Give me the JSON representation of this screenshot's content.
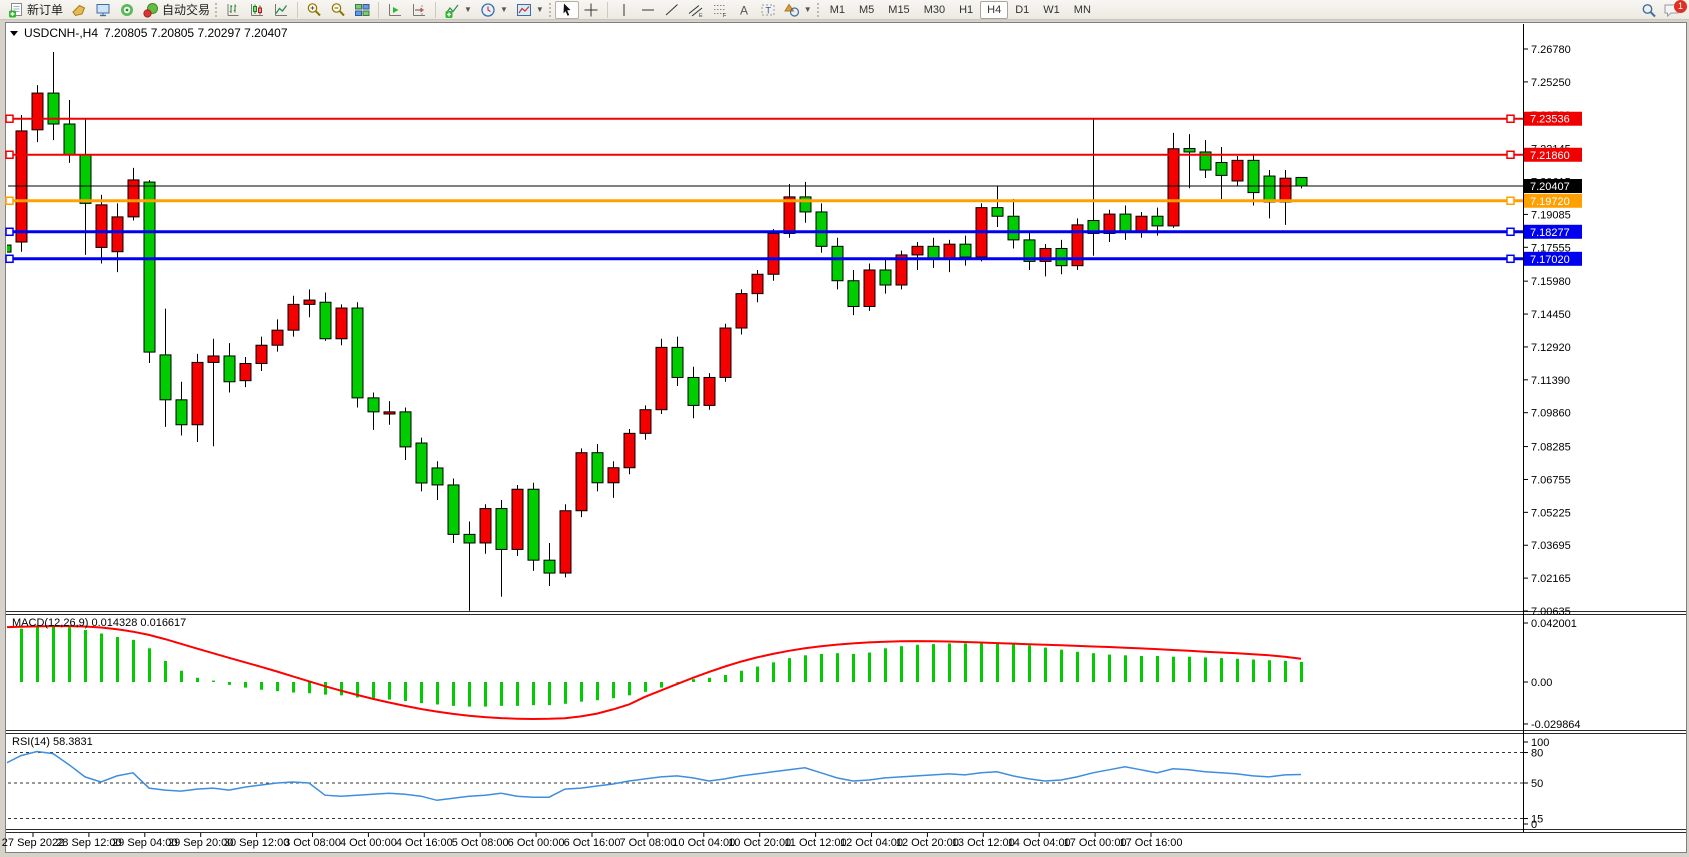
{
  "toolbar": {
    "new_order_label": "新订单",
    "autotrading_label": "自动交易",
    "timeframes": [
      "M1",
      "M5",
      "M15",
      "M30",
      "H1",
      "H4",
      "D1",
      "W1",
      "MN"
    ],
    "active_timeframe": "H4",
    "notification_count": "1",
    "icons": [
      "new-order-icon",
      "tag-icon",
      "market-watch-icon",
      "signals-icon",
      "autotrading-icon",
      "bar-chart-icon",
      "candlestick-chart-icon",
      "line-chart-icon",
      "zoom-in-icon",
      "zoom-out-icon",
      "tile-windows-icon",
      "auto-scroll-icon",
      "chart-shift-icon",
      "indicators-icon",
      "periods-icon",
      "templates-icon",
      "cursor-icon",
      "crosshair-icon",
      "vertical-line-icon",
      "horizontal-line-icon",
      "trendline-icon",
      "channel-icon",
      "fibonacci-icon",
      "text-icon",
      "label-icon",
      "shapes-icon",
      "search-icon",
      "chat-icon"
    ]
  },
  "chart": {
    "symbol_title": "USDCNH-,H4",
    "ohlc_text": "7.20805 7.20805 7.20297 7.20407",
    "macd_label": "MACD(12,26,9) 0.014328 0.016617",
    "rsi_label": "RSI(14) 58.3831"
  },
  "chart_data": {
    "type": "candlestick",
    "symbol": "USDCNH-",
    "timeframe": "H4",
    "colors": {
      "up": "#f50000",
      "down": "#00cd00",
      "wick": "#000000",
      "signal": "#ff0000",
      "macd_bar": "#00cc00",
      "rsi_line": "#3e8ede"
    },
    "ylim": [
      7.00635,
      7.2794
    ],
    "y_ticks": [
      "7.26780",
      "7.25250",
      "7.23720",
      "7.22145",
      "7.20615",
      "7.19085",
      "7.17555",
      "7.15980",
      "7.14450",
      "7.12920",
      "7.11390",
      "7.09860",
      "7.08285",
      "7.06755",
      "7.05225",
      "7.03695",
      "7.02165",
      "7.00635"
    ],
    "x_labels": [
      "27 Sep 2022",
      "28 Sep 12:00",
      "29 Sep 04:00",
      "29 Sep 20:00",
      "30 Sep 12:00",
      "3 Oct 08:00",
      "4 Oct 00:00",
      "4 Oct 16:00",
      "5 Oct 08:00",
      "6 Oct 00:00",
      "6 Oct 16:00",
      "7 Oct 08:00",
      "10 Oct 04:00",
      "10 Oct 20:00",
      "11 Oct 12:00",
      "12 Oct 04:00",
      "12 Oct 20:00",
      "13 Oct 12:00",
      "14 Oct 04:00",
      "17 Oct 00:00",
      "17 Oct 16:00"
    ],
    "hlines": [
      {
        "price": 7.23536,
        "label": "7.23536",
        "color": "#f00000",
        "width": 2
      },
      {
        "price": 7.2186,
        "label": "7.21860",
        "color": "#f00000",
        "width": 2
      },
      {
        "price": 7.1972,
        "label": "7.19720",
        "color": "#ffa000",
        "width": 3
      },
      {
        "price": 7.18277,
        "label": "7.18277",
        "color": "#0000f0",
        "width": 3
      },
      {
        "price": 7.1702,
        "label": "7.17020",
        "color": "#0000f0",
        "width": 3
      }
    ],
    "current_price": {
      "value": 7.20407,
      "label": "7.20407",
      "color": "#000000"
    },
    "candles": [
      [
        7.1766,
        7.179,
        7.172,
        7.1733
      ],
      [
        7.178,
        7.2371,
        7.1735,
        7.2297
      ],
      [
        7.2302,
        7.251,
        7.2245,
        7.2473
      ],
      [
        7.2473,
        7.2664,
        7.2254,
        7.2329
      ],
      [
        7.2329,
        7.2441,
        7.2148,
        7.2185
      ],
      [
        7.2185,
        7.235,
        7.172,
        7.196
      ],
      [
        7.1755,
        7.2,
        7.168,
        7.1953
      ],
      [
        7.1735,
        7.196,
        7.164,
        7.1897
      ],
      [
        7.1897,
        7.2125,
        7.188,
        7.2069
      ],
      [
        7.2059,
        7.2068,
        7.1217,
        7.1268
      ],
      [
        7.1255,
        7.147,
        7.092,
        7.1046
      ],
      [
        7.1046,
        7.113,
        7.088,
        7.093
      ],
      [
        7.093,
        7.126,
        7.085,
        7.122
      ],
      [
        7.122,
        7.133,
        7.083,
        7.125
      ],
      [
        7.125,
        7.131,
        7.108,
        7.113
      ],
      [
        7.1135,
        7.1245,
        7.1105,
        7.1215
      ],
      [
        7.1215,
        7.134,
        7.118,
        7.13
      ],
      [
        7.13,
        7.142,
        7.127,
        7.137
      ],
      [
        7.137,
        7.153,
        7.134,
        7.149
      ],
      [
        7.149,
        7.156,
        7.143,
        7.151
      ],
      [
        7.15,
        7.1545,
        7.132,
        7.133
      ],
      [
        7.133,
        7.149,
        7.13,
        7.1473
      ],
      [
        7.1473,
        7.15,
        7.101,
        7.1055
      ],
      [
        7.1055,
        7.108,
        7.0906,
        7.099
      ],
      [
        7.098,
        7.104,
        7.093,
        7.099
      ],
      [
        7.099,
        7.101,
        7.0766,
        7.0827
      ],
      [
        7.0845,
        7.087,
        7.062,
        7.0659
      ],
      [
        7.0729,
        7.076,
        7.058,
        7.065
      ],
      [
        7.065,
        7.068,
        7.038,
        7.042
      ],
      [
        7.042,
        7.048,
        7.0065,
        7.038
      ],
      [
        7.038,
        7.056,
        7.033,
        7.054
      ],
      [
        7.054,
        7.058,
        7.013,
        7.035
      ],
      [
        7.035,
        7.065,
        7.032,
        7.063
      ],
      [
        7.063,
        7.066,
        7.025,
        7.03
      ],
      [
        7.03,
        7.038,
        7.018,
        7.024
      ],
      [
        7.024,
        7.056,
        7.022,
        7.053
      ],
      [
        7.053,
        7.082,
        7.05,
        7.08
      ],
      [
        7.08,
        7.084,
        7.062,
        7.066
      ],
      [
        7.066,
        7.076,
        7.059,
        7.073
      ],
      [
        7.073,
        7.091,
        7.07,
        7.089
      ],
      [
        7.089,
        7.102,
        7.086,
        7.1
      ],
      [
        7.1,
        7.133,
        7.098,
        7.129
      ],
      [
        7.129,
        7.134,
        7.111,
        7.115
      ],
      [
        7.115,
        7.12,
        7.096,
        7.102
      ],
      [
        7.102,
        7.117,
        7.1,
        7.115
      ],
      [
        7.115,
        7.14,
        7.113,
        7.138
      ],
      [
        7.138,
        7.156,
        7.135,
        7.154
      ],
      [
        7.154,
        7.165,
        7.15,
        7.163
      ],
      [
        7.163,
        7.184,
        7.16,
        7.182
      ],
      [
        7.182,
        7.205,
        7.18,
        7.199
      ],
      [
        7.199,
        7.206,
        7.187,
        7.192
      ],
      [
        7.192,
        7.196,
        7.173,
        7.176
      ],
      [
        7.176,
        7.18,
        7.156,
        7.16
      ],
      [
        7.16,
        7.165,
        7.144,
        7.148
      ],
      [
        7.148,
        7.168,
        7.146,
        7.165
      ],
      [
        7.165,
        7.17,
        7.154,
        7.158
      ],
      [
        7.158,
        7.174,
        7.156,
        7.172
      ],
      [
        7.172,
        7.178,
        7.165,
        7.176
      ],
      [
        7.176,
        7.18,
        7.166,
        7.17
      ],
      [
        7.17,
        7.179,
        7.164,
        7.177
      ],
      [
        7.177,
        7.181,
        7.167,
        7.171
      ],
      [
        7.171,
        7.196,
        7.169,
        7.194
      ],
      [
        7.194,
        7.204,
        7.185,
        7.19
      ],
      [
        7.19,
        7.198,
        7.175,
        7.179
      ],
      [
        7.179,
        7.183,
        7.165,
        7.169
      ],
      [
        7.169,
        7.177,
        7.162,
        7.175
      ],
      [
        7.175,
        7.179,
        7.163,
        7.167
      ],
      [
        7.167,
        7.189,
        7.165,
        7.186
      ],
      [
        7.188,
        7.2353,
        7.1716,
        7.182
      ],
      [
        7.182,
        7.193,
        7.178,
        7.191
      ],
      [
        7.191,
        7.195,
        7.179,
        7.183
      ],
      [
        7.183,
        7.192,
        7.18,
        7.19
      ],
      [
        7.19,
        7.194,
        7.181,
        7.1855
      ],
      [
        7.1855,
        7.2288,
        7.1846,
        7.2214
      ],
      [
        7.2215,
        7.2282,
        7.203,
        7.2199
      ],
      [
        7.2199,
        7.2254,
        7.2078,
        7.2115
      ],
      [
        7.215,
        7.2222,
        7.198,
        7.209
      ],
      [
        7.2064,
        7.218,
        7.204,
        7.216
      ],
      [
        7.216,
        7.219,
        7.195,
        7.201
      ],
      [
        7.2087,
        7.2115,
        7.189,
        7.1966
      ],
      [
        7.1966,
        7.2115,
        7.186,
        7.2077
      ],
      [
        7.20805,
        7.20805,
        7.20297,
        7.20407
      ]
    ],
    "macd": {
      "title": "MACD(12,26,9)",
      "values_label": "0.014328 0.016617",
      "ticks": [
        {
          "v": 0.042001,
          "label": "0.042001"
        },
        {
          "v": 0,
          "label": "0.00"
        },
        {
          "v": -0.029864,
          "label": "-0.029864"
        }
      ],
      "ylim": [
        -0.029864,
        0.042001
      ],
      "histogram": [
        0.035,
        0.038,
        0.04,
        0.0405,
        0.039,
        0.037,
        0.0345,
        0.032,
        0.03,
        0.024,
        0.015,
        0.008,
        0.003,
        0.001,
        -0.002,
        -0.004,
        -0.0055,
        -0.0065,
        -0.0075,
        -0.008,
        -0.009,
        -0.0095,
        -0.011,
        -0.012,
        -0.0125,
        -0.0135,
        -0.015,
        -0.016,
        -0.017,
        -0.0175,
        -0.0175,
        -0.017,
        -0.017,
        -0.0165,
        -0.0165,
        -0.0155,
        -0.014,
        -0.013,
        -0.0115,
        -0.0095,
        -0.007,
        -0.004,
        -0.0005,
        0.002,
        0.003,
        0.005,
        0.008,
        0.011,
        0.014,
        0.017,
        0.019,
        0.02,
        0.0205,
        0.02,
        0.021,
        0.024,
        0.0255,
        0.0265,
        0.027,
        0.0275,
        0.0275,
        0.028,
        0.0275,
        0.027,
        0.026,
        0.0245,
        0.023,
        0.0215,
        0.0205,
        0.0195,
        0.019,
        0.0185,
        0.0185,
        0.018,
        0.018,
        0.0175,
        0.017,
        0.0165,
        0.016,
        0.0155,
        0.015,
        0.0143
      ],
      "signal": [
        0.039,
        0.0393,
        0.0396,
        0.0398,
        0.0398,
        0.0395,
        0.0388,
        0.0376,
        0.0358,
        0.0335,
        0.0305,
        0.0272,
        0.0238,
        0.0205,
        0.0172,
        0.014,
        0.0108,
        0.0075,
        0.004,
        0.0005,
        -0.003,
        -0.0062,
        -0.0092,
        -0.012,
        -0.0146,
        -0.017,
        -0.0192,
        -0.0211,
        -0.0227,
        -0.024,
        -0.025,
        -0.0257,
        -0.0261,
        -0.0263,
        -0.0262,
        -0.0258,
        -0.0245,
        -0.0225,
        -0.0195,
        -0.016,
        -0.0105,
        -0.006,
        -0.0015,
        0.003,
        0.0072,
        0.011,
        0.0145,
        0.0175,
        0.02,
        0.0222,
        0.024,
        0.0255,
        0.0266,
        0.0275,
        0.0282,
        0.0287,
        0.029,
        0.0291,
        0.029,
        0.0288,
        0.0285,
        0.0281,
        0.0277,
        0.0273,
        0.0269,
        0.0265,
        0.0261,
        0.0257,
        0.0253,
        0.0249,
        0.0244,
        0.0239,
        0.0234,
        0.0228,
        0.0222,
        0.0216,
        0.021,
        0.0204,
        0.0198,
        0.019,
        0.018,
        0.0166
      ]
    },
    "rsi": {
      "title": "RSI(14)",
      "value_label": "58.3831",
      "ticks": [
        {
          "v": 100,
          "label": "100"
        },
        {
          "v": 80,
          "label": "80"
        },
        {
          "v": 50,
          "label": "50"
        },
        {
          "v": 15,
          "label": "15"
        },
        {
          "v": 0,
          "label": "0"
        }
      ],
      "levels": [
        80,
        50,
        15
      ],
      "ylim": [
        0,
        100
      ],
      "values": [
        69,
        77,
        81,
        79,
        68,
        56,
        51,
        57,
        60,
        45,
        43,
        42,
        44,
        45,
        43,
        46,
        48,
        50,
        51,
        50,
        38,
        37,
        38,
        39,
        40,
        39,
        37,
        33,
        35,
        37,
        38,
        40,
        37,
        36,
        36,
        44,
        45,
        47,
        49,
        52,
        54,
        56,
        57,
        55,
        52,
        54,
        57,
        59,
        61,
        63,
        65,
        60,
        55,
        52,
        53,
        55,
        56,
        57,
        58,
        59,
        58,
        60,
        61,
        57,
        54,
        52,
        53,
        56,
        60,
        63,
        66,
        63,
        60,
        64,
        63,
        61,
        60,
        59,
        57,
        56,
        58,
        58.38
      ]
    }
  }
}
